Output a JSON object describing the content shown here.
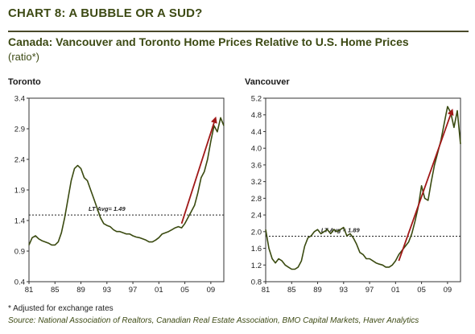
{
  "header": {
    "chart_title": "CHART 8: A BUBBLE OR A SUD?",
    "subtitle": "Canada: Vancouver and Toronto Home Prices Relative to U.S. Home Prices",
    "subtitle_note": "(ratio*)"
  },
  "footer": {
    "footnote": "* Adjusted for exchange rates",
    "source": "Source: National Association of Realtors, Canadian Real Estate Association, BMO Capital Markets, Haver Analytics"
  },
  "colors": {
    "series_line": "#3a4a10",
    "arrow": "#a01818",
    "heading": "#3d4a14"
  },
  "chart_data": [
    {
      "type": "line",
      "title": "Toronto",
      "ylim": [
        0.4,
        3.4
      ],
      "yticks": [
        "0.4",
        "0.9",
        "1.4",
        "1.9",
        "2.4",
        "2.9",
        "3.4"
      ],
      "xlim": [
        1981,
        2011
      ],
      "xticks": [
        "81",
        "85",
        "89",
        "93",
        "97",
        "01",
        "05",
        "09"
      ],
      "grid": false,
      "lt_avg": {
        "value": 1.49,
        "label": "LT Avg= 1.49"
      },
      "trend_arrow": {
        "from": [
          2004.5,
          1.35
        ],
        "to": [
          2009.8,
          3.1
        ]
      },
      "series": [
        {
          "x": [
            1981.0,
            1981.5,
            1982.0,
            1982.5,
            1983.0,
            1983.5,
            1984.0,
            1984.5,
            1985.0,
            1985.5,
            1986.0,
            1986.5,
            1987.0,
            1987.5,
            1988.0,
            1988.5,
            1989.0,
            1989.5,
            1990.0,
            1990.5,
            1991.0,
            1991.5,
            1992.0,
            1992.5,
            1993.0,
            1993.5,
            1994.0,
            1994.5,
            1995.0,
            1995.5,
            1996.0,
            1996.5,
            1997.0,
            1997.5,
            1998.0,
            1998.5,
            1999.0,
            1999.5,
            2000.0,
            2000.5,
            2001.0,
            2001.5,
            2002.0,
            2002.5,
            2003.0,
            2003.5,
            2004.0,
            2004.5,
            2005.0,
            2005.5,
            2006.0,
            2006.5,
            2007.0,
            2007.5,
            2008.0,
            2008.5,
            2009.0,
            2009.5,
            2010.0,
            2010.5,
            2011.0
          ],
          "values": [
            1.0,
            1.12,
            1.15,
            1.1,
            1.07,
            1.05,
            1.03,
            1.0,
            1.0,
            1.05,
            1.2,
            1.45,
            1.75,
            2.05,
            2.25,
            2.3,
            2.25,
            2.1,
            2.05,
            1.9,
            1.75,
            1.6,
            1.45,
            1.35,
            1.32,
            1.3,
            1.25,
            1.22,
            1.22,
            1.2,
            1.18,
            1.18,
            1.15,
            1.13,
            1.12,
            1.1,
            1.08,
            1.05,
            1.05,
            1.08,
            1.12,
            1.18,
            1.2,
            1.22,
            1.25,
            1.28,
            1.3,
            1.28,
            1.35,
            1.45,
            1.55,
            1.65,
            1.85,
            2.1,
            2.2,
            2.4,
            2.7,
            2.95,
            2.85,
            3.08,
            2.95
          ]
        }
      ]
    },
    {
      "type": "line",
      "title": "Vancouver",
      "ylim": [
        0.8,
        5.2
      ],
      "yticks": [
        "0.8",
        "1.2",
        "1.6",
        "2.0",
        "2.4",
        "2.8",
        "3.2",
        "3.6",
        "4.0",
        "4.4",
        "4.8",
        "5.2"
      ],
      "xlim": [
        1981,
        2011
      ],
      "xticks": [
        "81",
        "85",
        "89",
        "93",
        "97",
        "01",
        "05",
        "09"
      ],
      "grid": false,
      "lt_avg": {
        "value": 1.89,
        "label": "LT Avg = 1.89"
      },
      "trend_arrow": {
        "from": [
          2001.5,
          1.3
        ],
        "to": [
          2009.8,
          4.95
        ]
      },
      "series": [
        {
          "x": [
            1981.0,
            1981.5,
            1982.0,
            1982.5,
            1983.0,
            1983.5,
            1984.0,
            1984.5,
            1985.0,
            1985.5,
            1986.0,
            1986.5,
            1987.0,
            1987.5,
            1988.0,
            1988.5,
            1989.0,
            1989.5,
            1990.0,
            1990.5,
            1991.0,
            1991.5,
            1992.0,
            1992.5,
            1993.0,
            1993.5,
            1994.0,
            1994.5,
            1995.0,
            1995.5,
            1996.0,
            1996.5,
            1997.0,
            1997.5,
            1998.0,
            1998.5,
            1999.0,
            1999.5,
            2000.0,
            2000.5,
            2001.0,
            2001.5,
            2002.0,
            2002.5,
            2003.0,
            2003.5,
            2004.0,
            2004.5,
            2005.0,
            2005.5,
            2006.0,
            2006.5,
            2007.0,
            2007.5,
            2008.0,
            2008.5,
            2009.0,
            2009.5,
            2010.0,
            2010.5,
            2011.0
          ],
          "values": [
            2.05,
            1.6,
            1.35,
            1.25,
            1.35,
            1.3,
            1.2,
            1.15,
            1.1,
            1.1,
            1.15,
            1.3,
            1.65,
            1.85,
            1.9,
            2.0,
            2.05,
            1.95,
            2.0,
            2.05,
            1.95,
            2.05,
            2.0,
            2.05,
            2.1,
            1.9,
            1.95,
            1.85,
            1.7,
            1.5,
            1.45,
            1.35,
            1.35,
            1.3,
            1.25,
            1.22,
            1.2,
            1.15,
            1.15,
            1.2,
            1.3,
            1.45,
            1.55,
            1.65,
            1.75,
            1.95,
            2.25,
            2.6,
            3.1,
            2.8,
            2.75,
            3.2,
            3.6,
            3.9,
            4.2,
            4.6,
            5.0,
            4.85,
            4.5,
            4.9,
            4.1
          ]
        }
      ]
    }
  ]
}
